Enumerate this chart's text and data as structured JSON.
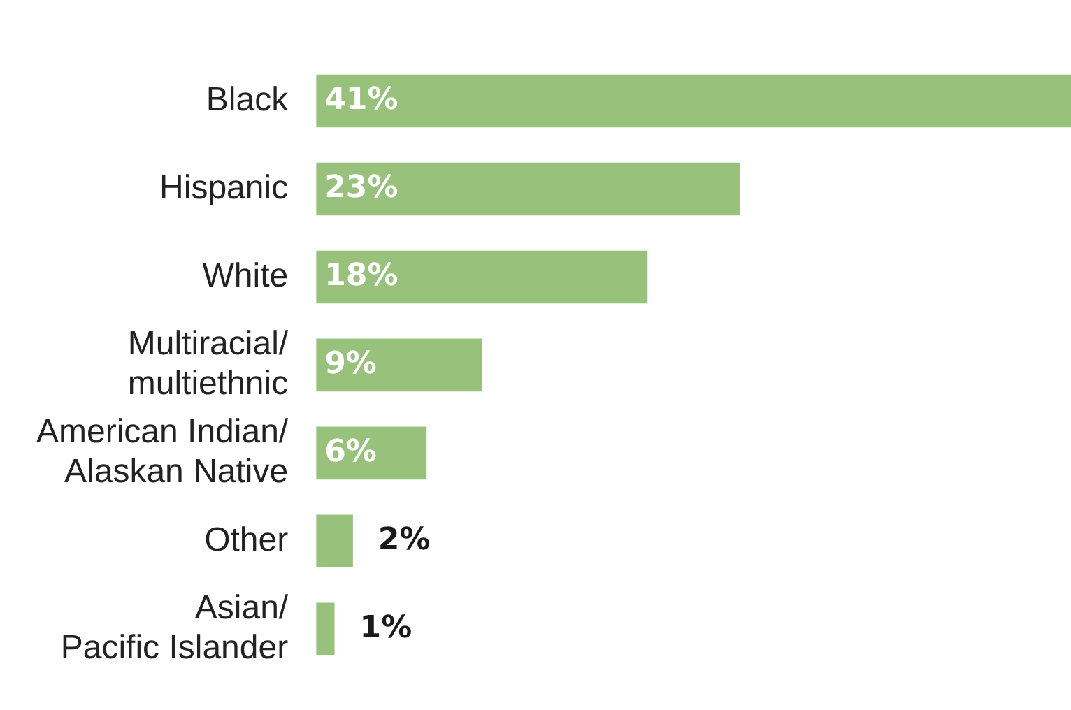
{
  "chart_data": {
    "type": "bar",
    "orientation": "horizontal",
    "categories": [
      "Black",
      "Hispanic",
      "White",
      "Multiracial/\nmultiethnic",
      "American Indian/\nAlaskan Native",
      "Other",
      "Asian/\nPacific Islander"
    ],
    "values": [
      41,
      23,
      18,
      9,
      6,
      2,
      1
    ],
    "value_labels": [
      "41%",
      "23%",
      "18%",
      "9%",
      "6%",
      "2%",
      "1%"
    ],
    "color": "#98c17c",
    "tick_labels": "y"
  }
}
